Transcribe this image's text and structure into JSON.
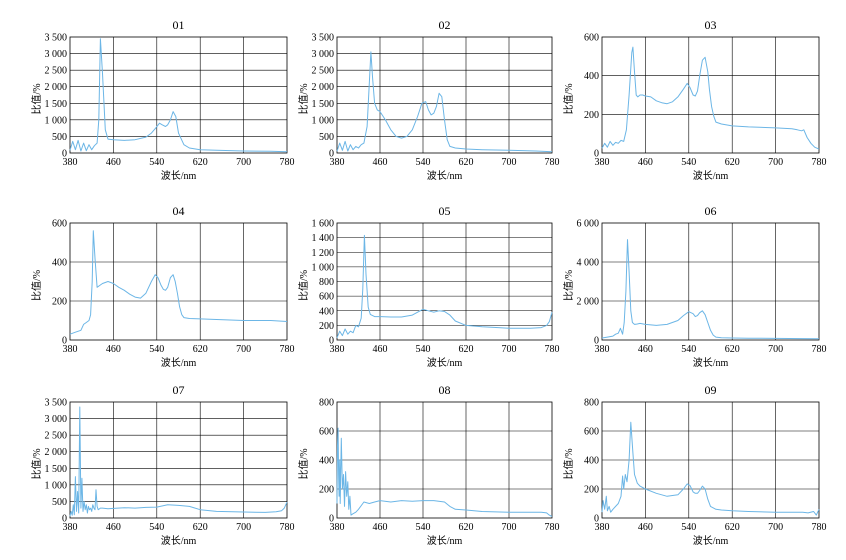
{
  "chart_data": [
    {
      "type": "line",
      "title": "01",
      "xlabel": "波长/nm",
      "ylabel": "比值/%",
      "xlim": [
        380,
        780
      ],
      "ylim": [
        0,
        3500
      ],
      "xticks": [
        "380",
        "460",
        "540",
        "620",
        "700",
        "780"
      ],
      "yticks": [
        "0",
        "500",
        "1 000",
        "1 500",
        "2 000",
        "2 500",
        "3 000",
        "3 500"
      ],
      "grid": true,
      "series": [
        {
          "x": [
            380,
            385,
            390,
            395,
            400,
            405,
            410,
            415,
            420,
            425,
            430,
            433,
            436,
            440,
            445,
            450,
            460,
            480,
            500,
            520,
            530,
            538,
            545,
            550,
            556,
            560,
            565,
            570,
            575,
            580,
            590,
            600,
            620,
            650,
            700,
            750,
            780
          ],
          "y": [
            80,
            350,
            100,
            380,
            60,
            300,
            70,
            250,
            100,
            220,
            300,
            1000,
            3450,
            2400,
            700,
            420,
            400,
            380,
            400,
            480,
            600,
            750,
            900,
            850,
            800,
            850,
            1000,
            1250,
            1100,
            600,
            250,
            150,
            100,
            80,
            60,
            50,
            40
          ]
        }
      ]
    },
    {
      "type": "line",
      "title": "02",
      "xlabel": "波长/nm",
      "ylabel": "比值/%",
      "xlim": [
        380,
        780
      ],
      "ylim": [
        0,
        3500
      ],
      "xticks": [
        "380",
        "460",
        "540",
        "620",
        "700",
        "780"
      ],
      "yticks": [
        "0",
        "500",
        "1 000",
        "1 500",
        "2 000",
        "2 500",
        "3 000",
        "3 500"
      ],
      "grid": true,
      "series": [
        {
          "x": [
            380,
            385,
            390,
            395,
            400,
            405,
            410,
            415,
            420,
            425,
            430,
            436,
            440,
            443,
            446,
            450,
            455,
            460,
            470,
            480,
            490,
            500,
            510,
            520,
            530,
            538,
            545,
            550,
            555,
            560,
            565,
            570,
            575,
            580,
            585,
            590,
            600,
            620,
            650,
            700,
            750,
            780
          ],
          "y": [
            50,
            300,
            80,
            350,
            60,
            250,
            100,
            200,
            150,
            250,
            300,
            800,
            2100,
            3050,
            2300,
            1500,
            1300,
            1250,
            1000,
            700,
            500,
            450,
            500,
            700,
            1100,
            1500,
            1550,
            1300,
            1150,
            1200,
            1400,
            1800,
            1700,
            1000,
            400,
            200,
            150,
            120,
            100,
            80,
            60,
            40
          ]
        }
      ]
    },
    {
      "type": "line",
      "title": "03",
      "xlabel": "波长/nm",
      "ylabel": "比值/%",
      "xlim": [
        380,
        780
      ],
      "ylim": [
        0,
        600
      ],
      "xticks": [
        "380",
        "460",
        "540",
        "620",
        "700",
        "780"
      ],
      "yticks": [
        "0",
        "200",
        "400",
        "600"
      ],
      "grid": true,
      "series": [
        {
          "x": [
            380,
            385,
            390,
            395,
            400,
            405,
            410,
            415,
            420,
            425,
            430,
            435,
            437,
            440,
            443,
            446,
            450,
            455,
            460,
            470,
            480,
            490,
            500,
            510,
            520,
            530,
            537,
            542,
            548,
            552,
            556,
            560,
            565,
            570,
            575,
            578,
            582,
            586,
            590,
            600,
            620,
            650,
            700,
            730,
            740,
            748,
            752,
            758,
            765,
            772,
            780
          ],
          "y": [
            25,
            50,
            30,
            60,
            40,
            55,
            50,
            65,
            60,
            120,
            300,
            520,
            548,
            420,
            300,
            290,
            300,
            300,
            295,
            290,
            270,
            260,
            255,
            265,
            290,
            330,
            360,
            340,
            300,
            295,
            320,
            400,
            480,
            495,
            420,
            330,
            240,
            190,
            160,
            150,
            140,
            135,
            130,
            125,
            120,
            115,
            120,
            80,
            50,
            30,
            20
          ]
        }
      ]
    },
    {
      "type": "line",
      "title": "04",
      "xlabel": "波长/nm",
      "ylabel": "比值/%",
      "xlim": [
        380,
        780
      ],
      "ylim": [
        0,
        600
      ],
      "xticks": [
        "380",
        "460",
        "540",
        "620",
        "700",
        "780"
      ],
      "yticks": [
        "0",
        "200",
        "400",
        "600"
      ],
      "grid": true,
      "series": [
        {
          "x": [
            380,
            390,
            400,
            405,
            410,
            415,
            418,
            421,
            423,
            426,
            430,
            435,
            440,
            450,
            460,
            470,
            480,
            490,
            500,
            510,
            520,
            530,
            537,
            542,
            548,
            552,
            556,
            560,
            565,
            570,
            574,
            578,
            582,
            586,
            590,
            600,
            620,
            650,
            700,
            750,
            780
          ],
          "y": [
            30,
            40,
            50,
            80,
            90,
            100,
            130,
            300,
            560,
            420,
            270,
            280,
            290,
            300,
            290,
            270,
            255,
            235,
            220,
            215,
            240,
            300,
            335,
            320,
            280,
            260,
            255,
            270,
            320,
            335,
            300,
            240,
            170,
            130,
            115,
            110,
            108,
            105,
            100,
            100,
            95
          ]
        }
      ]
    },
    {
      "type": "line",
      "title": "05",
      "xlabel": "波长/nm",
      "ylabel": "比值/%",
      "xlim": [
        380,
        780
      ],
      "ylim": [
        0,
        1600
      ],
      "xticks": [
        "380",
        "460",
        "540",
        "620",
        "700",
        "780"
      ],
      "yticks": [
        "0",
        "200",
        "400",
        "600",
        "800",
        "1 000",
        "1 200",
        "1 400",
        "1 600"
      ],
      "grid": true,
      "series": [
        {
          "x": [
            380,
            385,
            390,
            395,
            400,
            405,
            410,
            415,
            420,
            425,
            428,
            431,
            434,
            438,
            442,
            450,
            460,
            480,
            500,
            520,
            530,
            540,
            550,
            560,
            570,
            580,
            590,
            600,
            620,
            650,
            680,
            700,
            720,
            740,
            760,
            770,
            775,
            780
          ],
          "y": [
            30,
            120,
            60,
            150,
            80,
            120,
            100,
            200,
            180,
            300,
            700,
            1430,
            900,
            450,
            350,
            320,
            320,
            315,
            315,
            340,
            380,
            420,
            400,
            380,
            400,
            390,
            340,
            260,
            200,
            180,
            170,
            160,
            160,
            160,
            170,
            200,
            250,
            380
          ]
        }
      ]
    },
    {
      "type": "line",
      "title": "06",
      "xlabel": "波长/nm",
      "ylabel": "比值/%",
      "xlim": [
        380,
        780
      ],
      "ylim": [
        0,
        6000
      ],
      "xticks": [
        "380",
        "460",
        "540",
        "620",
        "700",
        "780"
      ],
      "yticks": [
        "0",
        "2 000",
        "4 000",
        "6 000"
      ],
      "grid": true,
      "series": [
        {
          "x": [
            380,
            390,
            400,
            405,
            410,
            414,
            418,
            421,
            424,
            427,
            430,
            433,
            436,
            440,
            445,
            450,
            460,
            480,
            500,
            520,
            530,
            540,
            548,
            552,
            556,
            560,
            565,
            570,
            575,
            580,
            585,
            590,
            600,
            620,
            650,
            700,
            750,
            780
          ],
          "y": [
            100,
            150,
            200,
            300,
            350,
            600,
            300,
            900,
            2500,
            5150,
            3500,
            1500,
            900,
            800,
            820,
            850,
            800,
            750,
            800,
            1000,
            1250,
            1450,
            1350,
            1200,
            1250,
            1400,
            1500,
            1300,
            900,
            500,
            250,
            150,
            120,
            100,
            90,
            80,
            70,
            60
          ]
        }
      ]
    },
    {
      "type": "line",
      "title": "07",
      "xlabel": "波长/nm",
      "ylabel": "比值/%",
      "xlim": [
        380,
        780
      ],
      "ylim": [
        0,
        3500
      ],
      "xticks": [
        "380",
        "460",
        "540",
        "620",
        "700",
        "780"
      ],
      "yticks": [
        "0",
        "500",
        "1 000",
        "1 500",
        "2 000",
        "2 500",
        "3 000",
        "3 500"
      ],
      "grid": true,
      "series": [
        {
          "x": [
            380,
            382,
            384,
            386,
            388,
            390,
            392,
            394,
            396,
            398,
            400,
            402,
            404,
            406,
            408,
            410,
            412,
            414,
            416,
            418,
            420,
            422,
            424,
            426,
            428,
            430,
            432,
            436,
            440,
            450,
            460,
            480,
            500,
            520,
            540,
            560,
            580,
            600,
            620,
            650,
            700,
            740,
            760,
            770,
            775,
            780
          ],
          "y": [
            50,
            200,
            80,
            400,
            100,
            1250,
            200,
            800,
            150,
            3350,
            300,
            1200,
            200,
            500,
            250,
            400,
            150,
            350,
            250,
            300,
            200,
            400,
            300,
            250,
            850,
            350,
            250,
            300,
            300,
            280,
            290,
            310,
            300,
            320,
            330,
            400,
            380,
            350,
            250,
            200,
            180,
            170,
            190,
            220,
            300,
            480
          ]
        }
      ]
    },
    {
      "type": "line",
      "title": "08",
      "xlabel": "波长/nm",
      "ylabel": "比值/%",
      "xlim": [
        380,
        780
      ],
      "ylim": [
        0,
        800
      ],
      "xticks": [
        "380",
        "460",
        "540",
        "620",
        "700",
        "780"
      ],
      "yticks": [
        "0",
        "200",
        "400",
        "600",
        "800"
      ],
      "grid": true,
      "series": [
        {
          "x": [
            380,
            381,
            382,
            383,
            384,
            385,
            386,
            388,
            390,
            392,
            394,
            396,
            398,
            400,
            402,
            404,
            406,
            410,
            415,
            420,
            430,
            440,
            450,
            460,
            480,
            500,
            520,
            540,
            560,
            580,
            590,
            600,
            620,
            650,
            700,
            740,
            760,
            770,
            775,
            780
          ],
          "y": [
            100,
            500,
            620,
            300,
            150,
            400,
            100,
            550,
            200,
            300,
            80,
            320,
            150,
            250,
            60,
            150,
            20,
            30,
            40,
            60,
            110,
            100,
            110,
            120,
            110,
            120,
            115,
            120,
            120,
            110,
            80,
            60,
            55,
            45,
            40,
            40,
            40,
            35,
            20,
            10
          ]
        }
      ]
    },
    {
      "type": "line",
      "title": "09",
      "xlabel": "波长/nm",
      "ylabel": "比值/%",
      "xlim": [
        380,
        780
      ],
      "ylim": [
        0,
        800
      ],
      "xticks": [
        "380",
        "460",
        "540",
        "620",
        "700",
        "780"
      ],
      "yticks": [
        "0",
        "200",
        "400",
        "600",
        "800"
      ],
      "grid": true,
      "series": [
        {
          "x": [
            380,
            382,
            385,
            388,
            390,
            393,
            396,
            400,
            405,
            410,
            415,
            418,
            420,
            423,
            426,
            430,
            433,
            437,
            440,
            445,
            450,
            460,
            480,
            500,
            520,
            530,
            537,
            542,
            548,
            552,
            556,
            560,
            565,
            570,
            575,
            580,
            590,
            600,
            620,
            650,
            700,
            750,
            760,
            770,
            775,
            780
          ],
          "y": [
            40,
            120,
            60,
            150,
            50,
            80,
            40,
            60,
            80,
            100,
            150,
            290,
            200,
            300,
            250,
            400,
            660,
            450,
            300,
            240,
            220,
            200,
            170,
            150,
            160,
            200,
            235,
            225,
            180,
            170,
            170,
            190,
            220,
            200,
            130,
            80,
            60,
            55,
            50,
            45,
            40,
            40,
            35,
            45,
            20,
            60
          ]
        }
      ]
    }
  ]
}
